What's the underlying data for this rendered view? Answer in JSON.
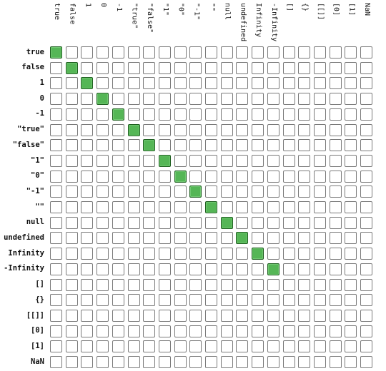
{
  "chart_data": {
    "type": "table",
    "title": "",
    "columns": [
      "true",
      "false",
      "1",
      "0",
      "-1",
      "\"true\"",
      "\"false\"",
      "\"1\"",
      "\"0\"",
      "\"-1\"",
      "\"\"",
      "null",
      "undefined",
      "Infinity",
      "-Infinity",
      "[]",
      "{}",
      "[[]]",
      "[0]",
      "[1]",
      "NaN"
    ],
    "rows": [
      "true",
      "false",
      "1",
      "0",
      "-1",
      "\"true\"",
      "\"false\"",
      "\"1\"",
      "\"0\"",
      "\"-1\"",
      "\"\"",
      "null",
      "undefined",
      "Infinity",
      "-Infinity",
      "[]",
      "{}",
      "[[]]",
      "[0]",
      "[1]",
      "NaN"
    ],
    "matrix": [
      [
        1,
        0,
        0,
        0,
        0,
        0,
        0,
        0,
        0,
        0,
        0,
        0,
        0,
        0,
        0,
        0,
        0,
        0,
        0,
        0,
        0
      ],
      [
        0,
        1,
        0,
        0,
        0,
        0,
        0,
        0,
        0,
        0,
        0,
        0,
        0,
        0,
        0,
        0,
        0,
        0,
        0,
        0,
        0
      ],
      [
        0,
        0,
        1,
        0,
        0,
        0,
        0,
        0,
        0,
        0,
        0,
        0,
        0,
        0,
        0,
        0,
        0,
        0,
        0,
        0,
        0
      ],
      [
        0,
        0,
        0,
        1,
        0,
        0,
        0,
        0,
        0,
        0,
        0,
        0,
        0,
        0,
        0,
        0,
        0,
        0,
        0,
        0,
        0
      ],
      [
        0,
        0,
        0,
        0,
        1,
        0,
        0,
        0,
        0,
        0,
        0,
        0,
        0,
        0,
        0,
        0,
        0,
        0,
        0,
        0,
        0
      ],
      [
        0,
        0,
        0,
        0,
        0,
        1,
        0,
        0,
        0,
        0,
        0,
        0,
        0,
        0,
        0,
        0,
        0,
        0,
        0,
        0,
        0
      ],
      [
        0,
        0,
        0,
        0,
        0,
        0,
        1,
        0,
        0,
        0,
        0,
        0,
        0,
        0,
        0,
        0,
        0,
        0,
        0,
        0,
        0
      ],
      [
        0,
        0,
        0,
        0,
        0,
        0,
        0,
        1,
        0,
        0,
        0,
        0,
        0,
        0,
        0,
        0,
        0,
        0,
        0,
        0,
        0
      ],
      [
        0,
        0,
        0,
        0,
        0,
        0,
        0,
        0,
        1,
        0,
        0,
        0,
        0,
        0,
        0,
        0,
        0,
        0,
        0,
        0,
        0
      ],
      [
        0,
        0,
        0,
        0,
        0,
        0,
        0,
        0,
        0,
        1,
        0,
        0,
        0,
        0,
        0,
        0,
        0,
        0,
        0,
        0,
        0
      ],
      [
        0,
        0,
        0,
        0,
        0,
        0,
        0,
        0,
        0,
        0,
        1,
        0,
        0,
        0,
        0,
        0,
        0,
        0,
        0,
        0,
        0
      ],
      [
        0,
        0,
        0,
        0,
        0,
        0,
        0,
        0,
        0,
        0,
        0,
        1,
        0,
        0,
        0,
        0,
        0,
        0,
        0,
        0,
        0
      ],
      [
        0,
        0,
        0,
        0,
        0,
        0,
        0,
        0,
        0,
        0,
        0,
        0,
        1,
        0,
        0,
        0,
        0,
        0,
        0,
        0,
        0
      ],
      [
        0,
        0,
        0,
        0,
        0,
        0,
        0,
        0,
        0,
        0,
        0,
        0,
        0,
        1,
        0,
        0,
        0,
        0,
        0,
        0,
        0
      ],
      [
        0,
        0,
        0,
        0,
        0,
        0,
        0,
        0,
        0,
        0,
        0,
        0,
        0,
        0,
        1,
        0,
        0,
        0,
        0,
        0,
        0
      ],
      [
        0,
        0,
        0,
        0,
        0,
        0,
        0,
        0,
        0,
        0,
        0,
        0,
        0,
        0,
        0,
        0,
        0,
        0,
        0,
        0,
        0
      ],
      [
        0,
        0,
        0,
        0,
        0,
        0,
        0,
        0,
        0,
        0,
        0,
        0,
        0,
        0,
        0,
        0,
        0,
        0,
        0,
        0,
        0
      ],
      [
        0,
        0,
        0,
        0,
        0,
        0,
        0,
        0,
        0,
        0,
        0,
        0,
        0,
        0,
        0,
        0,
        0,
        0,
        0,
        0,
        0
      ],
      [
        0,
        0,
        0,
        0,
        0,
        0,
        0,
        0,
        0,
        0,
        0,
        0,
        0,
        0,
        0,
        0,
        0,
        0,
        0,
        0,
        0
      ],
      [
        0,
        0,
        0,
        0,
        0,
        0,
        0,
        0,
        0,
        0,
        0,
        0,
        0,
        0,
        0,
        0,
        0,
        0,
        0,
        0,
        0
      ],
      [
        0,
        0,
        0,
        0,
        0,
        0,
        0,
        0,
        0,
        0,
        0,
        0,
        0,
        0,
        0,
        0,
        0,
        0,
        0,
        0,
        0
      ]
    ],
    "colors": {
      "filled": "#55b656",
      "filled_border": "#1e5e1f",
      "empty": "#ffffff",
      "empty_border": "#7a7a7a"
    }
  }
}
